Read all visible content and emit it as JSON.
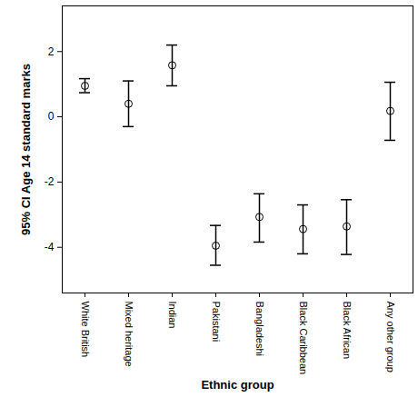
{
  "chart_data": {
    "type": "errorbar",
    "xlabel": "Ethnic group",
    "ylabel": "95% CI Age 14 standard marks",
    "categories": [
      "White British",
      "Mixed heritage",
      "Indian",
      "Pakistani",
      "Bangladeshi",
      "Black Caribbean",
      "Black African",
      "Any other group"
    ],
    "values": [
      0.95,
      0.4,
      1.58,
      -3.95,
      -3.07,
      -3.44,
      -3.36,
      0.18
    ],
    "ci_lower": [
      0.74,
      -0.3,
      0.95,
      -4.55,
      -3.84,
      -4.2,
      -4.22,
      -0.72
    ],
    "ci_upper": [
      1.17,
      1.1,
      2.2,
      -3.33,
      -2.36,
      -2.7,
      -2.54,
      1.06
    ],
    "color": "#000000",
    "marker": "circle",
    "ylim": [
      -5.4,
      3.4
    ],
    "yticks": [
      -4,
      -2,
      0,
      2
    ],
    "grid": false
  }
}
